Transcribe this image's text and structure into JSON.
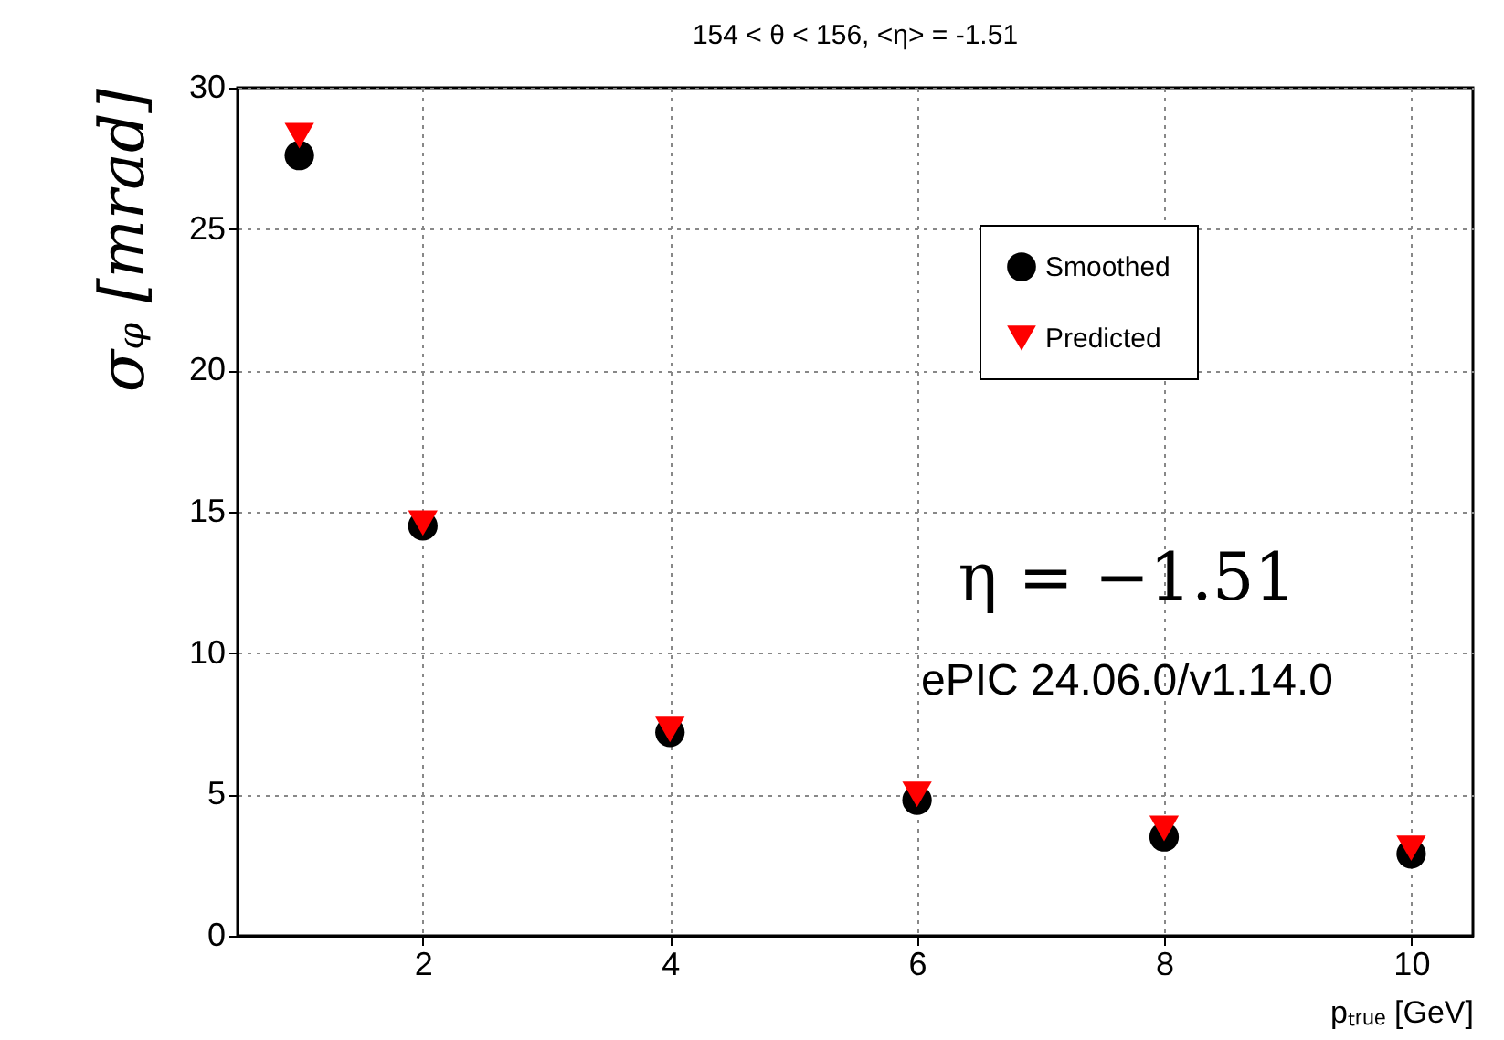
{
  "chart_data": {
    "type": "scatter",
    "title": "154 < θ < 156, <η> = -1.51",
    "xlabel": "pₜᵣᵤₑ [GeV]",
    "ylabel": "σᵩ [mrad]",
    "x": [
      1,
      2,
      4,
      6,
      8,
      10
    ],
    "series": [
      {
        "name": "Smoothed",
        "color": "#000000",
        "marker": "circle",
        "values": [
          27.6,
          14.5,
          7.2,
          4.8,
          3.5,
          2.9
        ]
      },
      {
        "name": "Predicted",
        "color": "#ff0000",
        "marker": "triangle",
        "values": [
          28.3,
          14.6,
          7.3,
          5.0,
          3.8,
          3.1
        ]
      }
    ],
    "xlim": [
      0.5,
      10.5
    ],
    "xticks": [
      2,
      4,
      6,
      8,
      10
    ],
    "ylim": [
      0,
      30
    ],
    "yticks": [
      0,
      5,
      10,
      15,
      20,
      25,
      30
    ],
    "grid": true,
    "legend": "top right",
    "annotations": [
      "η = −1.51",
      "ePIC 24.06.0/v1.14.0"
    ]
  }
}
